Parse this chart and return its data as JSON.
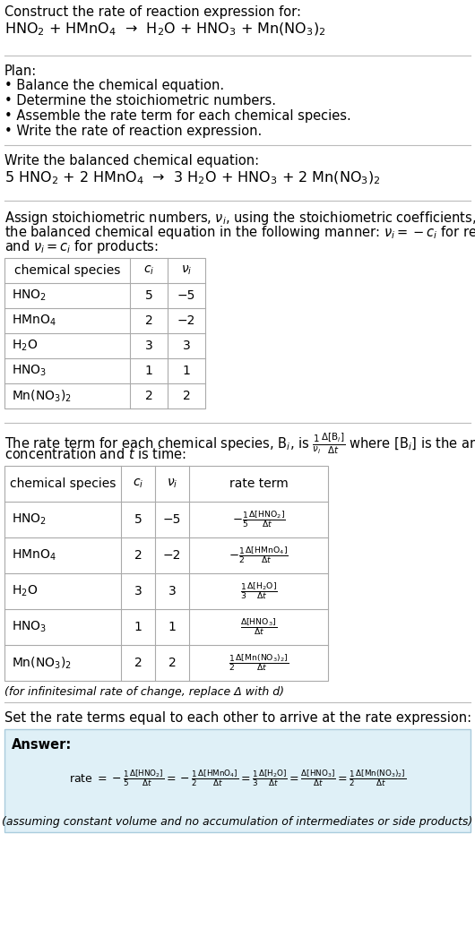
{
  "bg_color": "#ffffff",
  "text_color": "#000000",
  "title_line1": "Construct the rate of reaction expression for:",
  "reaction_unbalanced": "HNO$_2$ + HMnO$_4$  →  H$_2$O + HNO$_3$ + Mn(NO$_3$)$_2$",
  "plan_header": "Plan:",
  "plan_items": [
    "• Balance the chemical equation.",
    "• Determine the stoichiometric numbers.",
    "• Assemble the rate term for each chemical species.",
    "• Write the rate of reaction expression."
  ],
  "balanced_header": "Write the balanced chemical equation:",
  "balanced_eq": "5 HNO$_2$ + 2 HMnO$_4$  →  3 H$_2$O + HNO$_3$ + 2 Mn(NO$_3$)$_2$",
  "table1_cols": [
    "chemical species",
    "$c_i$",
    "$\\nu_i$"
  ],
  "table1_rows": [
    [
      "HNO$_2$",
      "5",
      "−5"
    ],
    [
      "HMnO$_4$",
      "2",
      "−2"
    ],
    [
      "H$_2$O",
      "3",
      "3"
    ],
    [
      "HNO$_3$",
      "1",
      "1"
    ],
    [
      "Mn(NO$_3$)$_2$",
      "2",
      "2"
    ]
  ],
  "table2_cols": [
    "chemical species",
    "$c_i$",
    "$\\nu_i$",
    "rate term"
  ],
  "table2_rows": [
    [
      "HNO$_2$",
      "5",
      "−5",
      "$-\\frac{1}{5}\\frac{\\Delta[\\mathrm{HNO_2}]}{\\Delta t}$"
    ],
    [
      "HMnO$_4$",
      "2",
      "−2",
      "$-\\frac{1}{2}\\frac{\\Delta[\\mathrm{HMnO_4}]}{\\Delta t}$"
    ],
    [
      "H$_2$O",
      "3",
      "3",
      "$\\frac{1}{3}\\frac{\\Delta[\\mathrm{H_2O}]}{\\Delta t}$"
    ],
    [
      "HNO$_3$",
      "1",
      "1",
      "$\\frac{\\Delta[\\mathrm{HNO_3}]}{\\Delta t}$"
    ],
    [
      "Mn(NO$_3$)$_2$",
      "2",
      "2",
      "$\\frac{1}{2}\\frac{\\Delta[\\mathrm{Mn(NO_3)_2}]}{\\Delta t}$"
    ]
  ],
  "infinitesimal_note": "(for infinitesimal rate of change, replace Δ with d)",
  "set_rate_header": "Set the rate terms equal to each other to arrive at the rate expression:",
  "answer_box_color": "#dff0f7",
  "answer_label": "Answer:",
  "answer_note": "(assuming constant volume and no accumulation of intermediates or side products)",
  "separator_color": "#bbbbbb",
  "table_border_color": "#aaaaaa"
}
